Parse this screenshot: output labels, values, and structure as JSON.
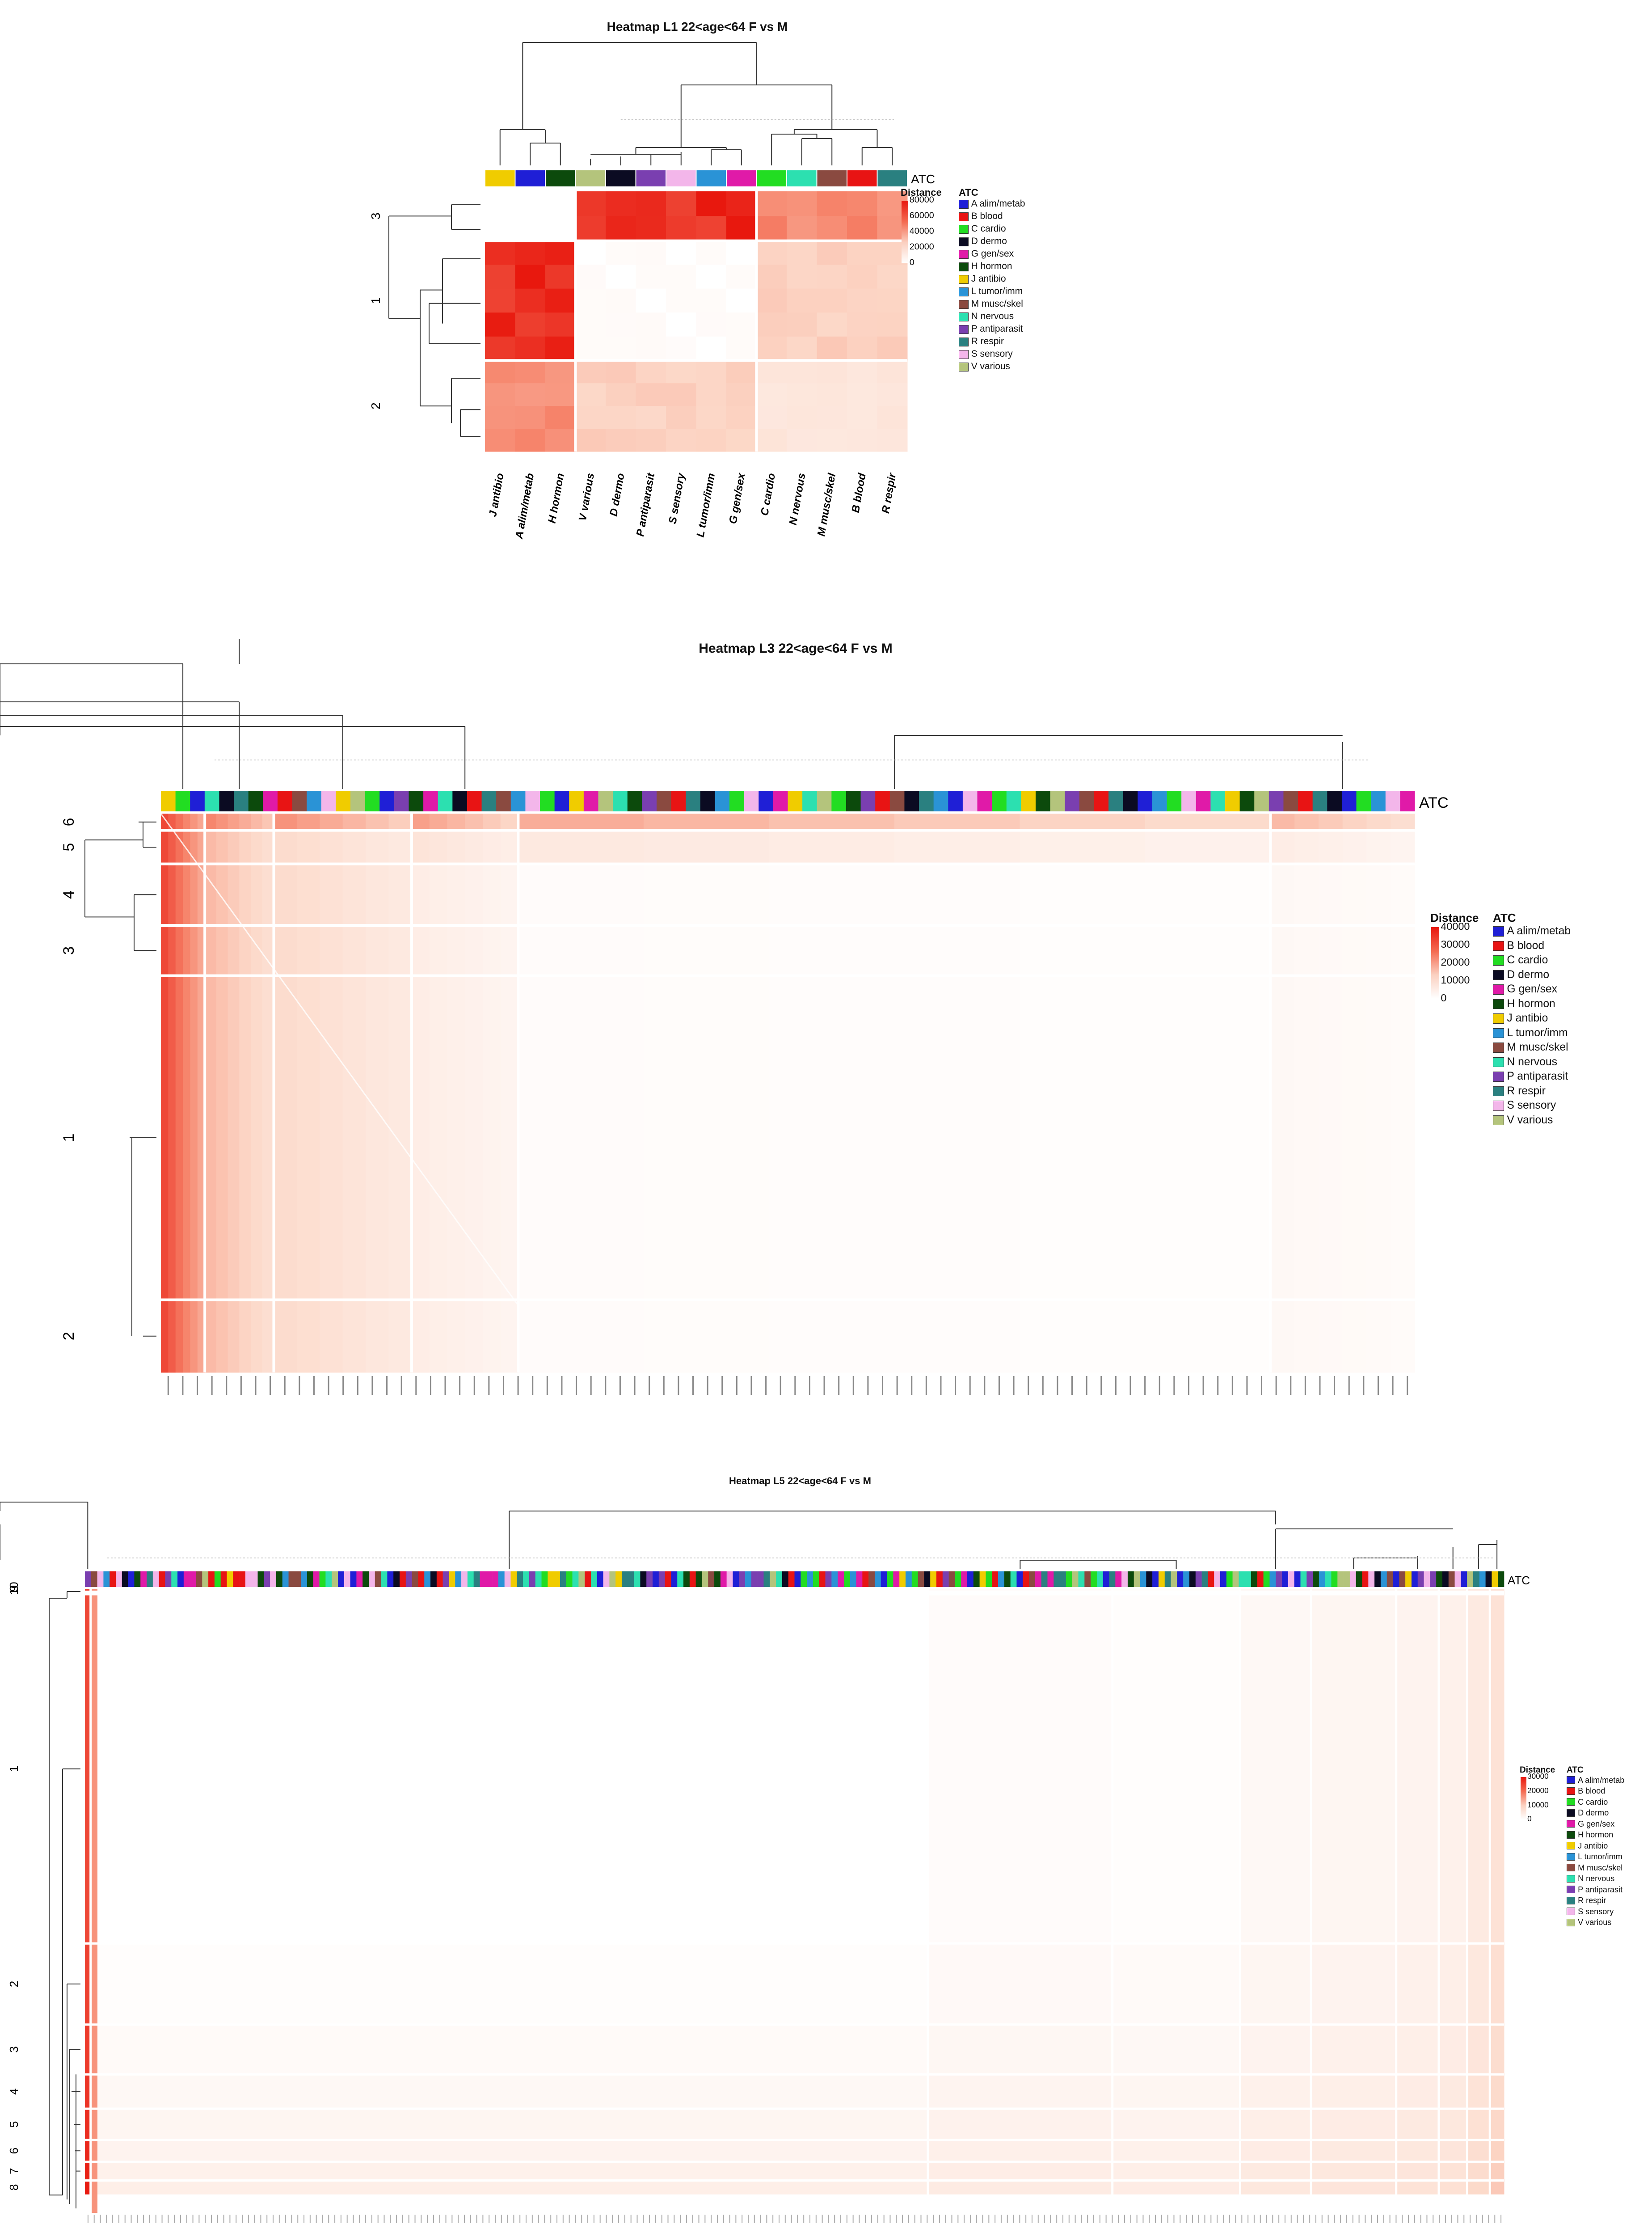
{
  "palette": {
    "A": "#1f1fd6",
    "B": "#e81414",
    "C": "#22dd22",
    "D": "#0b0b22",
    "G": "#e01aa8",
    "H": "#0c4a0c",
    "J": "#f0cc00",
    "L": "#2a93d6",
    "M": "#8a4a40",
    "N": "#2ce0b0",
    "P": "#7a3fb0",
    "R": "#2a8080",
    "S": "#f3b6ea",
    "V": "#b4c47c"
  },
  "legend_items": [
    {
      "code": "A",
      "label": "A alim/metab"
    },
    {
      "code": "B",
      "label": "B blood"
    },
    {
      "code": "C",
      "label": "C cardio"
    },
    {
      "code": "D",
      "label": "D dermo"
    },
    {
      "code": "G",
      "label": "G gen/sex"
    },
    {
      "code": "H",
      "label": "H hormon"
    },
    {
      "code": "J",
      "label": "J antibio"
    },
    {
      "code": "L",
      "label": "L tumor/imm"
    },
    {
      "code": "M",
      "label": "M musc/skel"
    },
    {
      "code": "N",
      "label": "N nervous"
    },
    {
      "code": "P",
      "label": "P antiparasit"
    },
    {
      "code": "R",
      "label": "R respir"
    },
    {
      "code": "S",
      "label": "S sensory"
    },
    {
      "code": "V",
      "label": "V various"
    }
  ],
  "annotation_label": "ATC",
  "distance_label": "Distance",
  "atc_header": "ATC",
  "chart_data": [
    {
      "type": "heatmap",
      "title": "Heatmap L1 22<age<64 F vs M",
      "color_scale": {
        "min": 0,
        "max": 80000,
        "ticks": [
          "80000",
          "60000",
          "40000",
          "20000",
          "0"
        ]
      },
      "columns": [
        "J antibio",
        "A alim/metab",
        "H hormon",
        "V various",
        "D dermo",
        "P antiparasit",
        "S sensory",
        "L tumor/imm",
        "G gen/sex",
        "C cardio",
        "N nervous",
        "M musc/skel",
        "B blood",
        "R respir"
      ],
      "column_codes": [
        "J",
        "A",
        "H",
        "V",
        "D",
        "P",
        "S",
        "L",
        "G",
        "C",
        "N",
        "M",
        "B",
        "R"
      ],
      "column_groups": [
        0,
        0,
        0,
        1,
        1,
        1,
        1,
        1,
        1,
        2,
        2,
        2,
        2,
        2
      ],
      "row_clusters": [
        "3",
        "1",
        "2"
      ],
      "cluster_value_matrix": [
        [
          0,
          78000,
          52000
        ],
        [
          78000,
          3000,
          30000
        ],
        [
          52000,
          30000,
          18000
        ]
      ]
    },
    {
      "type": "heatmap",
      "title": "Heatmap L3 22<age<64 F vs M",
      "color_scale": {
        "min": 0,
        "max": 40000,
        "ticks": [
          "40000",
          "30000",
          "20000",
          "10000",
          "0"
        ]
      },
      "n_columns": 86,
      "column_code_sequence": "JCANDRHGBMLSJVCAPHGNDBRMLSCAJGVNHPMBRDLCSAGJNVCHPBMDRLASGCNJHVPMBRDALCSGNJHVPMBRDACLSG",
      "row_clusters": [
        "6",
        "5",
        "4",
        "3",
        "1",
        "2"
      ],
      "row_cluster_fractions": [
        0.03,
        0.06,
        0.11,
        0.09,
        0.58,
        0.13
      ],
      "column_group_fractions": [
        0.035,
        0.055,
        0.11,
        0.085,
        0.6,
        0.115
      ],
      "column_group_intensity": [
        0.85,
        0.45,
        0.3,
        0.15,
        0.03,
        0.06
      ]
    },
    {
      "type": "heatmap",
      "title": "Heatmap L5 22<age<64 F vs M",
      "color_scale": {
        "min": 0,
        "max": 30000,
        "ticks": [
          "30000",
          "20000",
          "10000",
          "0"
        ]
      },
      "n_columns": 230,
      "row_clusters": [
        "10",
        "9",
        "1",
        "2",
        "3",
        "4",
        "5",
        "6",
        "7",
        "8"
      ],
      "row_cluster_fractions": [
        0.004,
        0.004,
        0.56,
        0.13,
        0.08,
        0.055,
        0.05,
        0.035,
        0.03,
        0.022
      ],
      "column_group_fractions": [
        0.004,
        0.59,
        0.13,
        0.09,
        0.05,
        0.06,
        0.03,
        0.02,
        0.016,
        0.01
      ],
      "column_group_intensity": [
        0.85,
        0.0,
        0.03,
        0.02,
        0.06,
        0.08,
        0.1,
        0.12,
        0.18,
        0.25
      ]
    }
  ]
}
